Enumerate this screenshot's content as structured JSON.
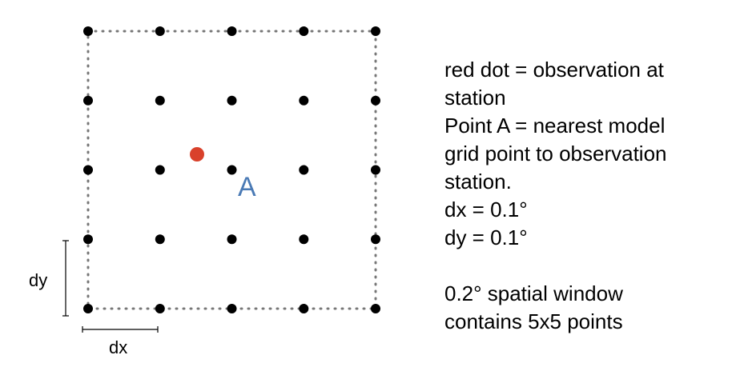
{
  "diagram": {
    "grid_rows": 5,
    "grid_cols": 5,
    "point_a_label": "A",
    "dx_label": "dx",
    "dy_label": "dy",
    "colors": {
      "grid_point": "#000000",
      "observation": "#d9412b",
      "point_a_label": "#4a7ab5",
      "window_border": "#777777"
    }
  },
  "legend": {
    "line1": "red dot = observation at",
    "line2": "station",
    "line3": "Point A = nearest model",
    "line4": "grid point to observation",
    "line5": "station.",
    "line6": "dx = 0.1°",
    "line7": "dy = 0.1°",
    "line8": "0.2° spatial window",
    "line9": "contains 5x5 points"
  }
}
